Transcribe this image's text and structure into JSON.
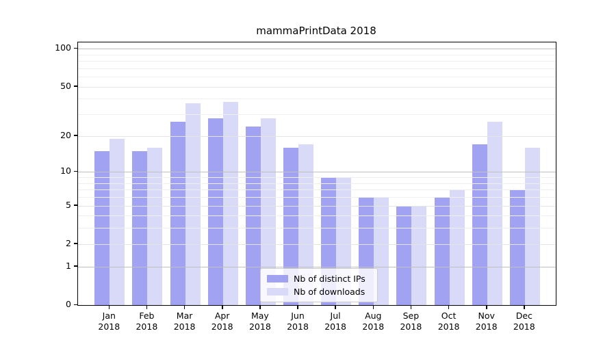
{
  "chart_data": {
    "type": "bar",
    "title": "mammaPrintData 2018",
    "categories": [
      "Jan",
      "Feb",
      "Mar",
      "Apr",
      "May",
      "Jun",
      "Jul",
      "Aug",
      "Sep",
      "Oct",
      "Nov",
      "Dec"
    ],
    "year_suffix": "2018",
    "series": [
      {
        "name": "Nb of distinct IPs",
        "color": "#a2a2f2",
        "values": [
          15,
          15,
          26,
          28,
          24,
          16,
          9,
          6,
          5,
          6,
          17,
          7
        ]
      },
      {
        "name": "Nb of downloads",
        "color": "#d9d9f8",
        "values": [
          19,
          16,
          37,
          38,
          28,
          17,
          9,
          6,
          5,
          7,
          26,
          16
        ]
      }
    ],
    "xlabel": "",
    "ylabel": "",
    "y_scale": "log10(1+v)",
    "y_ticks": [
      100,
      50,
      20,
      10,
      5,
      2,
      1,
      0
    ],
    "y_minor_gridlines": [
      3,
      4,
      6,
      7,
      8,
      9,
      30,
      40,
      60,
      70,
      80,
      90
    ],
    "ylim": [
      0,
      112
    ],
    "grid": true,
    "gridlines_above_bars": true,
    "legend_position": "inside-bottom-center",
    "colors": {
      "background": "#ffffff",
      "axis": "#000000",
      "decade_gridline": "#c0c0c0",
      "major_gridline": "#e4e4e4",
      "minor_gridline": "#efefef",
      "legend_border": "#cccccc"
    }
  }
}
